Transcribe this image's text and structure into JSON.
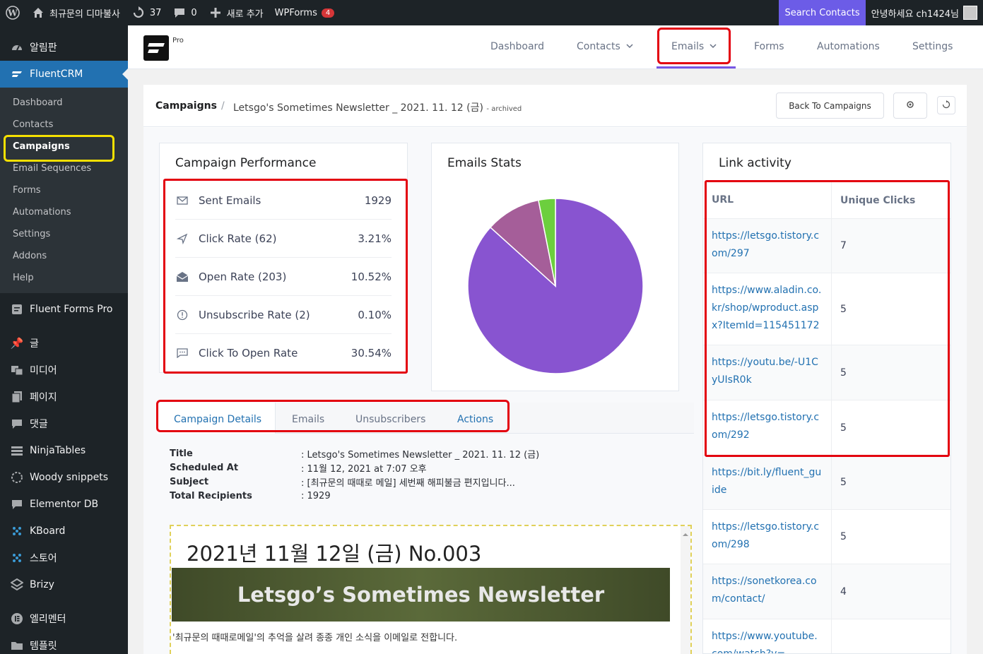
{
  "adminbar": {
    "site_name": "최규문의 디마불사",
    "updates": "37",
    "comments": "0",
    "new_label": "새로 추가",
    "wpforms_label": "WPForms",
    "wpforms_badge": "4",
    "search_contacts": "Search Contacts",
    "greeting": "안녕하세요 ch1424님"
  },
  "sidebar": {
    "dashboard": "알림판",
    "fluentcrm": "FluentCRM",
    "submenu": [
      "Dashboard",
      "Contacts",
      "Campaigns",
      "Email Sequences",
      "Forms",
      "Automations",
      "Settings",
      "Addons",
      "Help"
    ],
    "items": [
      "Fluent Forms Pro",
      "글",
      "미디어",
      "페이지",
      "댓글",
      "NinjaTables",
      "Woody snippets",
      "Elementor DB",
      "KBoard",
      "스토어",
      "Brizy",
      "엘리멘터",
      "템플릿"
    ]
  },
  "header": {
    "pro": "Pro",
    "nav": [
      "Dashboard",
      "Contacts",
      "Emails",
      "Forms",
      "Automations",
      "Settings"
    ]
  },
  "breadcrumb": {
    "main": "Campaigns",
    "sep": "/",
    "title": "Letsgo's Sometimes Newsletter _ 2021. 11. 12 (금)",
    "archived": "- archived",
    "back_button": "Back To Campaigns"
  },
  "performance": {
    "title": "Campaign Performance",
    "rows": [
      {
        "label": "Sent Emails",
        "value": "1929"
      },
      {
        "label": "Click Rate (62)",
        "value": "3.21%"
      },
      {
        "label": "Open Rate (203)",
        "value": "10.52%"
      },
      {
        "label": "Unsubscribe Rate (2)",
        "value": "0.10%"
      },
      {
        "label": "Click To Open Rate",
        "value": "30.54%"
      }
    ]
  },
  "stats": {
    "title": "Emails Stats"
  },
  "chart_data": {
    "type": "pie",
    "values": [
      1726,
      203,
      62
    ],
    "colors": [
      "#8854d0",
      "#a55e99",
      "#6ccf3e"
    ]
  },
  "links": {
    "title": "Link activity",
    "col_url": "URL",
    "col_clicks": "Unique Clicks",
    "rows": [
      {
        "url": "https://letsgo.tistory.com/297",
        "clicks": "7"
      },
      {
        "url": "https://www.aladin.co.kr/shop/wproduct.aspx?ItemId=115451172",
        "clicks": "5"
      },
      {
        "url": "https://youtu.be/-U1CyUIsR0k",
        "clicks": "5"
      },
      {
        "url": "https://letsgo.tistory.com/292",
        "clicks": "5"
      },
      {
        "url": "https://bit.ly/fluent_guide",
        "clicks": "5"
      },
      {
        "url": "https://letsgo.tistory.com/298",
        "clicks": "5"
      },
      {
        "url": "https://sonetkorea.com/contact/",
        "clicks": "4"
      },
      {
        "url": "https://www.youtube.com/watch?v=...",
        "clicks": ""
      }
    ]
  },
  "tabs": [
    "Campaign Details",
    "Emails",
    "Unsubscribers",
    "Actions"
  ],
  "details": {
    "title_k": "Title",
    "title_v": ": Letsgo's Sometimes Newsletter _ 2021. 11. 12 (금)",
    "sched_k": "Scheduled At",
    "sched_v": ": 11월 12, 2021 at 7:07 오후",
    "subject_k": "Subject",
    "subject_v": ": [최규문의 때때로 메일] 세번째 해피불금 편지입니다...",
    "recip_k": "Total Recipients",
    "recip_v": ": 1929"
  },
  "preview": {
    "heading": "2021년 11월 12일 (금) No.003",
    "banner": "Letsgo’s Sometimes Newsletter",
    "text": "'최규문의 때때로메일'의 추억을 살려 종종 개인 소식을 이메일로 전합니다."
  }
}
